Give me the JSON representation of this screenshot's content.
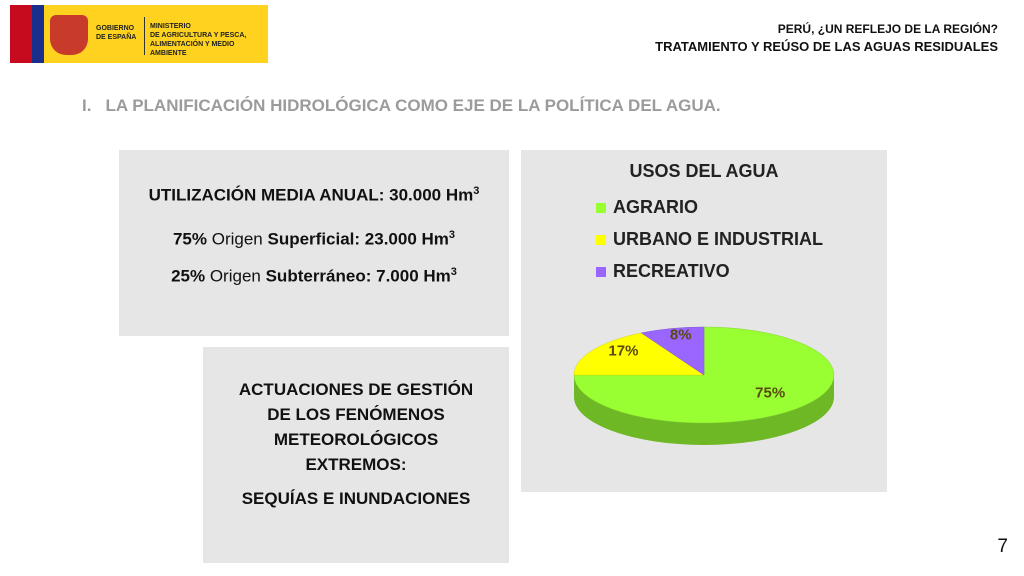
{
  "header": {
    "logo": {
      "government": [
        "GOBIERNO",
        "DE ESPAÑA"
      ],
      "ministry": [
        "MINISTERIO",
        "DE AGRICULTURA Y PESCA,",
        "ALIMENTACIÓN Y MEDIO AMBIENTE"
      ]
    },
    "title": [
      "PERÚ, ¿UN REFLEJO DE LA REGIÓN?",
      "TRATAMIENTO Y REÚSO DE LAS AGUAS RESIDUALES"
    ]
  },
  "section": {
    "number": "I.",
    "title": "LA PLANIFICACIÓN HIDROLÓGICA COMO EJE DE LA POLÍTICA DEL AGUA."
  },
  "usage_box": {
    "lines": [
      [
        "UTILIZACIÓN MEDIA ANUAL: 30.000 Hm",
        "3"
      ],
      [
        "75%",
        " Origen ",
        "Superficial: 23.000 Hm",
        "3"
      ],
      [
        "25%",
        " Origen ",
        "Subterráneo: 7.000 Hm",
        "3"
      ]
    ]
  },
  "actions_box": {
    "lines": [
      "ACTUACIONES DE GESTIÓN",
      "DE LOS FENÓMENOS",
      "METEOROLÓGICOS",
      "EXTREMOS:"
    ],
    "subtitle": "SEQUÍAS E INUNDACIONES"
  },
  "chart_data": {
    "type": "pie",
    "title": "USOS DEL AGUA",
    "categories": [
      "AGRARIO",
      "URBANO E INDUSTRIAL",
      "RECREATIVO"
    ],
    "values": [
      75,
      17,
      8
    ],
    "value_labels": [
      "75%",
      "17%",
      "8%"
    ],
    "colors": [
      "#99ff33",
      "#ffff00",
      "#9966ff"
    ],
    "legend": "top-left"
  },
  "page_number": "7"
}
